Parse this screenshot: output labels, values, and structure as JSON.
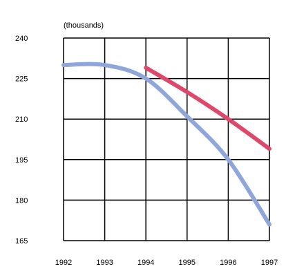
{
  "chart_data": {
    "type": "line",
    "unit_label": "(thousands)",
    "x": [
      1992,
      1993,
      1994,
      1995,
      1996,
      1997
    ],
    "x_tick_labels": [
      "1992",
      "1993",
      "1994",
      "1995",
      "1996",
      "1997"
    ],
    "y_tick_labels": [
      "240",
      "225",
      "210",
      "195",
      "180",
      "165"
    ],
    "ylim": [
      165,
      240
    ],
    "xlim": [
      1992,
      1997
    ],
    "grid": true,
    "series": [
      {
        "color": "#8fa6dc",
        "x": [
          1992,
          1993,
          1994,
          1995,
          1996,
          1997
        ],
        "values": [
          230,
          230,
          225,
          211,
          195,
          171
        ]
      },
      {
        "color": "#e0486a",
        "x": [
          1994,
          1995,
          1996,
          1997
        ],
        "values": [
          229,
          220,
          210,
          199
        ]
      }
    ]
  }
}
